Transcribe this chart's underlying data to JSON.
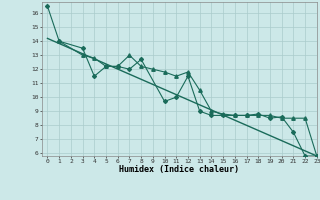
{
  "xlabel": "Humidex (Indice chaleur)",
  "xlim": [
    -0.5,
    23
  ],
  "ylim": [
    5.8,
    16.8
  ],
  "background_color": "#cce8e8",
  "grid_color": "#aacccc",
  "line_color": "#1a6b5a",
  "series1_x": [
    0,
    1,
    3,
    4,
    5,
    6,
    7,
    8,
    10,
    11,
    12,
    13,
    14,
    15,
    16,
    17,
    18,
    19,
    20,
    21,
    22,
    23
  ],
  "series1_y": [
    16.5,
    14.0,
    13.5,
    11.5,
    12.2,
    12.2,
    12.0,
    12.7,
    9.7,
    10.0,
    11.5,
    9.0,
    8.7,
    8.7,
    8.7,
    8.7,
    8.8,
    8.5,
    8.6,
    7.5,
    5.8,
    5.8
  ],
  "series2_x": [
    1,
    3,
    4,
    5,
    6,
    7,
    8,
    9,
    10,
    11,
    12,
    13,
    14,
    15,
    16,
    17,
    18,
    19,
    20,
    21,
    22,
    23
  ],
  "series2_y": [
    14.0,
    13.0,
    12.8,
    12.2,
    12.2,
    13.0,
    12.2,
    12.0,
    11.8,
    11.5,
    11.8,
    10.5,
    9.0,
    8.8,
    8.7,
    8.7,
    8.7,
    8.7,
    8.5,
    8.5,
    8.5,
    5.8
  ],
  "trend_x": [
    0,
    23
  ],
  "trend_y": [
    14.2,
    5.8
  ],
  "xticks": [
    0,
    1,
    2,
    3,
    4,
    5,
    6,
    7,
    8,
    9,
    10,
    11,
    12,
    13,
    14,
    15,
    16,
    17,
    18,
    19,
    20,
    21,
    22,
    23
  ],
  "yticks": [
    6,
    7,
    8,
    9,
    10,
    11,
    12,
    13,
    14,
    15,
    16
  ]
}
